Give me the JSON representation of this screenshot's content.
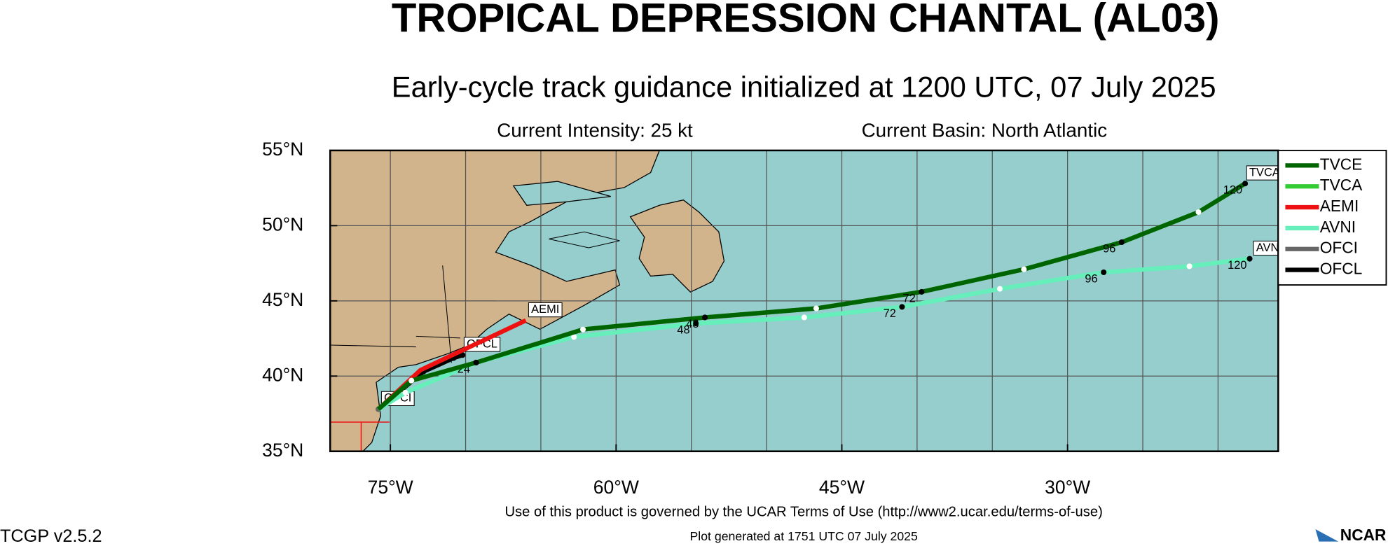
{
  "chart_data": {
    "type": "track-map",
    "title": "TROPICAL DEPRESSION CHANTAL (AL03)",
    "subtitle": "Early-cycle track guidance initialized at 1200 UTC, 07 July 2025",
    "intensity": "Current Intensity: 25 kt",
    "basin": "Current Basin: North Atlantic",
    "footer": "Use of this product is governed by the UCAR Terms of Use (http://www2.ucar.edu/terms-of-use)",
    "generated": "Plot generated at 1751 UTC   07 July 2025",
    "version": "TCGP v2.5.2",
    "logo": "NCAR",
    "xlim": [
      -79,
      -16
    ],
    "ylim": [
      35,
      55
    ],
    "xticks": [
      {
        "value": -75,
        "label": "75°W"
      },
      {
        "value": -60,
        "label": "60°W"
      },
      {
        "value": -45,
        "label": "45°W"
      },
      {
        "value": -30,
        "label": "30°W"
      }
    ],
    "yticks": [
      {
        "value": 35,
        "label": "35°N"
      },
      {
        "value": 40,
        "label": "40°N"
      },
      {
        "value": 45,
        "label": "45°N"
      },
      {
        "value": 50,
        "label": "50°N"
      },
      {
        "value": 55,
        "label": "55°N"
      }
    ],
    "xgrid": [
      -75,
      -70,
      -65,
      -60,
      -55,
      -50,
      -45,
      -40,
      -35,
      -30,
      -25,
      -20
    ],
    "ygrid": [
      40,
      45,
      50
    ],
    "series": [
      {
        "name": "TVCE",
        "color": "#006400",
        "markers": "alternate",
        "end_tag": false,
        "x": [
          -75.8,
          -73.6,
          -69.3,
          -62.2,
          -54.1,
          -46.7,
          -39.7,
          -32.9,
          -26.4,
          -21.3,
          -18.2
        ],
        "values": [
          37.8,
          39.7,
          40.9,
          43.1,
          43.9,
          44.5,
          45.6,
          47.1,
          48.9,
          50.9,
          52.8
        ],
        "hour_labels": [
          null,
          null,
          null,
          null,
          "48",
          null,
          "72",
          null,
          "96",
          null,
          "120"
        ]
      },
      {
        "name": "TVCA",
        "color": "#33cc33",
        "markers": "none",
        "end_tag": true,
        "x": [
          -75.8,
          -73.6,
          -69.3,
          -62.2,
          -54.1,
          -46.7,
          -39.7,
          -32.9,
          -26.4,
          -21.3,
          -18.2
        ],
        "values": [
          37.8,
          39.7,
          40.9,
          43.1,
          43.9,
          44.5,
          45.6,
          47.1,
          48.9,
          50.9,
          52.8
        ],
        "hour_labels": [
          null,
          null,
          null,
          null,
          null,
          null,
          null,
          null,
          null,
          null,
          null
        ]
      },
      {
        "name": "AEMI",
        "color": "#ee1111",
        "markers": "none",
        "end_tag": true,
        "x": [
          -75.8,
          -73.0,
          -66.0
        ],
        "values": [
          37.8,
          40.4,
          43.7
        ],
        "hour_labels": [
          null,
          null,
          null
        ]
      },
      {
        "name": "AVNI",
        "color": "#66eebb",
        "markers": "alternate",
        "end_tag": true,
        "x": [
          -75.8,
          -74.0,
          -69.3,
          -62.8,
          -54.7,
          -47.5,
          -41.0,
          -34.5,
          -27.6,
          -21.9,
          -17.9
        ],
        "values": [
          37.8,
          38.9,
          40.9,
          42.6,
          43.5,
          43.9,
          44.6,
          45.8,
          46.9,
          47.3,
          47.8
        ],
        "hour_labels": [
          null,
          null,
          "24",
          null,
          "48",
          null,
          "72",
          null,
          "96",
          null,
          "120"
        ]
      },
      {
        "name": "OFCI",
        "color": "#666666",
        "markers": "none",
        "end_tag": true,
        "x": [
          -75.8
        ],
        "values": [
          37.8
        ],
        "hour_labels": [
          null
        ]
      },
      {
        "name": "OFCL",
        "color": "#000000",
        "markers": "black",
        "end_tag": true,
        "x": [
          -75.8,
          -72.8,
          -70.8,
          -70.2
        ],
        "values": [
          37.8,
          40.3,
          41.2,
          41.4
        ],
        "hour_labels": [
          null,
          null,
          null,
          null
        ]
      }
    ]
  }
}
